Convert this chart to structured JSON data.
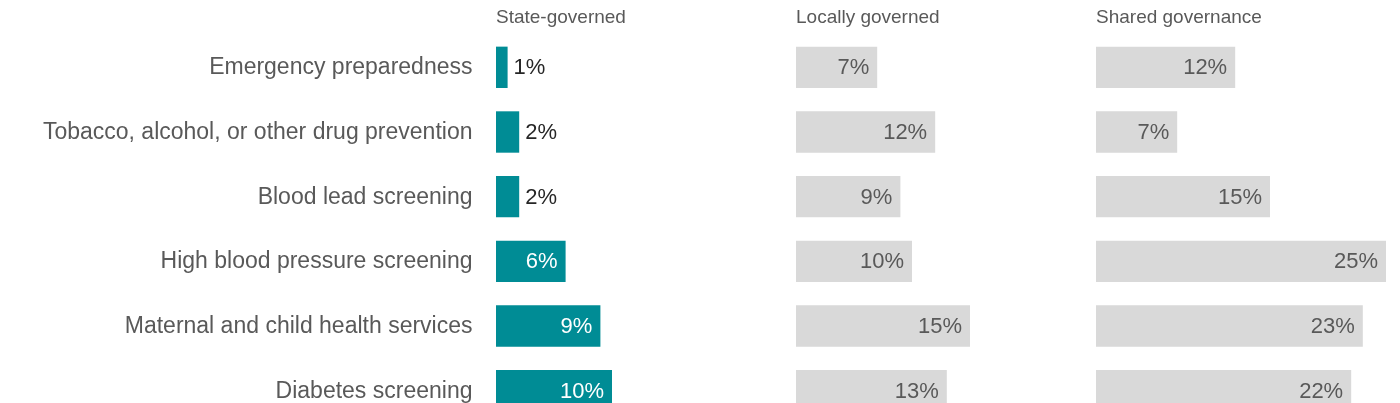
{
  "chart_data": [
    {
      "type": "bar",
      "orientation": "horizontal",
      "title": "State-governed",
      "categories": [
        "Emergency preparedness",
        "Tobacco, alcohol, or other drug prevention",
        "Blood lead screening",
        "High blood pressure screening",
        "Maternal and child health services",
        "Diabetes screening"
      ],
      "values": [
        1,
        2,
        2,
        6,
        9,
        10
      ],
      "value_labels": [
        "1%",
        "2%",
        "2%",
        "6%",
        "9%",
        "10%"
      ],
      "color": "#008c95",
      "xlim": [
        0,
        25
      ],
      "tick_labels": "y"
    },
    {
      "type": "bar",
      "orientation": "horizontal",
      "title": "Locally governed",
      "categories": [
        null,
        null,
        null,
        null,
        null,
        null
      ],
      "values": [
        7,
        12,
        9,
        10,
        15,
        13
      ],
      "value_labels": [
        "7%",
        "12%",
        "9%",
        "10%",
        "15%",
        "13%"
      ],
      "color": "#d9d9d9",
      "xlim": [
        0,
        25
      ]
    },
    {
      "type": "bar",
      "orientation": "horizontal",
      "title": "Shared governance",
      "categories": [
        null,
        null,
        null,
        null,
        null,
        null
      ],
      "values": [
        12,
        7,
        15,
        25,
        23,
        22
      ],
      "value_labels": [
        "12%",
        "7%",
        "15%",
        "25%",
        "23%",
        "22%"
      ],
      "color": "#d9d9d9",
      "xlim": [
        0,
        25
      ]
    }
  ]
}
